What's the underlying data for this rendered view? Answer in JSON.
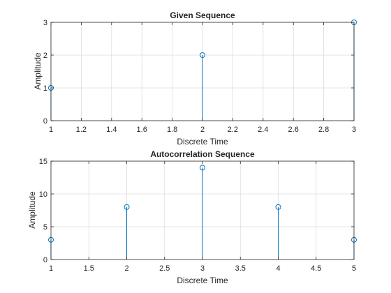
{
  "colors": {
    "stem": "#0072BD",
    "grid": "#DCDCDC",
    "axis": "#262626"
  },
  "chart_data": [
    {
      "type": "stem",
      "title": "Given Sequence",
      "xlabel": "Discrete Time",
      "ylabel": "Amplitude",
      "x": [
        1,
        2,
        3
      ],
      "y": [
        1,
        2,
        3
      ],
      "xlim": [
        1,
        3
      ],
      "ylim": [
        0,
        3
      ],
      "xticks": [
        1,
        1.2,
        1.4,
        1.6,
        1.8,
        2,
        2.2,
        2.4,
        2.6,
        2.8,
        3
      ],
      "xtick_labels": [
        "1",
        "1.2",
        "1.4",
        "1.6",
        "1.8",
        "2",
        "2.2",
        "2.4",
        "2.6",
        "2.8",
        "3"
      ],
      "yticks": [
        0,
        1,
        2,
        3
      ],
      "ytick_labels": [
        "0",
        "1",
        "2",
        "3"
      ],
      "grid": true,
      "marker": "circle"
    },
    {
      "type": "stem",
      "title": "Autocorrelation Sequence",
      "xlabel": "Discrete Time",
      "ylabel": "Amplitude",
      "x": [
        1,
        2,
        3,
        4,
        5
      ],
      "y": [
        3,
        8,
        14,
        8,
        3
      ],
      "xlim": [
        1,
        5
      ],
      "ylim": [
        0,
        15
      ],
      "xticks": [
        1,
        1.5,
        2,
        2.5,
        3,
        3.5,
        4,
        4.5,
        5
      ],
      "xtick_labels": [
        "1",
        "1.5",
        "2",
        "2.5",
        "3",
        "3.5",
        "4",
        "4.5",
        "5"
      ],
      "yticks": [
        0,
        5,
        10,
        15
      ],
      "ytick_labels": [
        "0",
        "5",
        "10",
        "15"
      ],
      "grid": true,
      "marker": "circle"
    }
  ]
}
